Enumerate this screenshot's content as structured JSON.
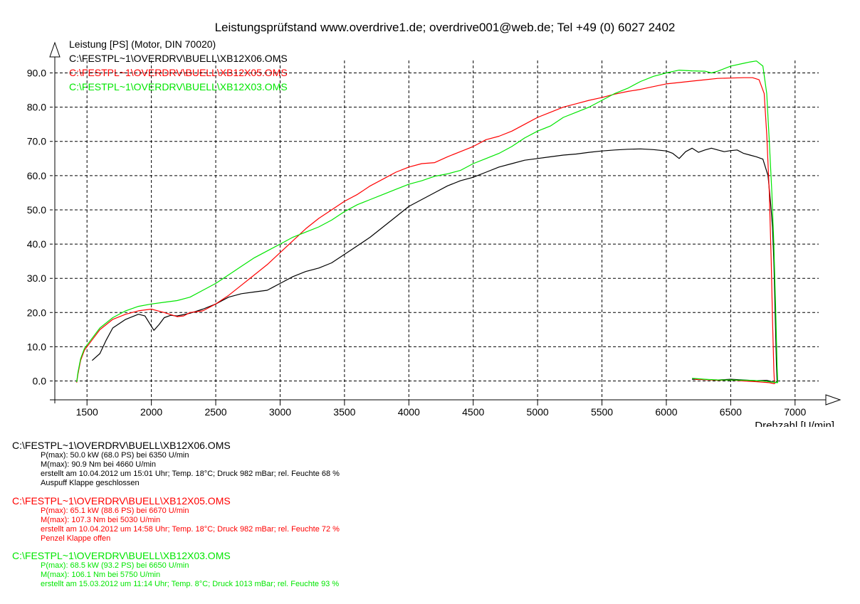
{
  "chart_data": {
    "type": "line",
    "title": "Leistungsprüfstand www.overdrive1.de; overdrive001@web.de; Tel +49 (0) 6027 2402",
    "ylabel": "Leistung [PS] (Motor, DIN 70020)",
    "xlabel": "Drehzahl [U/min]",
    "xlim": [
      1250,
      7250
    ],
    "ylim": [
      -5.5,
      98
    ],
    "grid": true,
    "x_ticks": [
      "1500",
      "2000",
      "2500",
      "3000",
      "3500",
      "4000",
      "4500",
      "5000",
      "5500",
      "6000",
      "6500",
      "7000"
    ],
    "y_ticks": [
      "0.0",
      "10.0",
      "20.0",
      "30.0",
      "40.0",
      "50.0",
      "60.0",
      "70.0",
      "80.0",
      "90.0"
    ],
    "legend_position": "top-left",
    "series": [
      {
        "name": "C:\\FESTPL~1\\OVERDRV\\BUELL\\XB12X06.OMS",
        "color": "#000000",
        "points": [
          [
            1540,
            6
          ],
          [
            1600,
            8
          ],
          [
            1650,
            12
          ],
          [
            1700,
            15.5
          ],
          [
            1800,
            18
          ],
          [
            1900,
            19.5
          ],
          [
            1950,
            19
          ],
          [
            2000,
            16
          ],
          [
            2020,
            14.8
          ],
          [
            2060,
            16.5
          ],
          [
            2100,
            18.5
          ],
          [
            2150,
            19.2
          ],
          [
            2200,
            19
          ],
          [
            2300,
            19.8
          ],
          [
            2400,
            21
          ],
          [
            2500,
            22.5
          ],
          [
            2600,
            24.5
          ],
          [
            2700,
            25.5
          ],
          [
            2800,
            26
          ],
          [
            2900,
            26.5
          ],
          [
            2950,
            27.5
          ],
          [
            3000,
            28.5
          ],
          [
            3100,
            30.5
          ],
          [
            3200,
            32
          ],
          [
            3300,
            33
          ],
          [
            3400,
            34.5
          ],
          [
            3500,
            37
          ],
          [
            3600,
            39.5
          ],
          [
            3700,
            42
          ],
          [
            3800,
            45
          ],
          [
            3900,
            48
          ],
          [
            4000,
            51
          ],
          [
            4100,
            53
          ],
          [
            4200,
            55
          ],
          [
            4300,
            57
          ],
          [
            4400,
            58.5
          ],
          [
            4500,
            59.5
          ],
          [
            4600,
            61
          ],
          [
            4700,
            62.5
          ],
          [
            4800,
            63.5
          ],
          [
            4900,
            64.5
          ],
          [
            5000,
            65
          ],
          [
            5100,
            65.5
          ],
          [
            5200,
            66
          ],
          [
            5300,
            66.3
          ],
          [
            5400,
            66.8
          ],
          [
            5500,
            67.2
          ],
          [
            5600,
            67.5
          ],
          [
            5700,
            67.7
          ],
          [
            5800,
            67.8
          ],
          [
            5900,
            67.6
          ],
          [
            6000,
            67.2
          ],
          [
            6050,
            66.5
          ],
          [
            6100,
            65
          ],
          [
            6150,
            67
          ],
          [
            6200,
            68
          ],
          [
            6250,
            66.8
          ],
          [
            6300,
            67.5
          ],
          [
            6350,
            68
          ],
          [
            6400,
            67.5
          ],
          [
            6450,
            67
          ],
          [
            6500,
            67.3
          ],
          [
            6550,
            67.5
          ],
          [
            6600,
            66.5
          ],
          [
            6650,
            66
          ],
          [
            6700,
            65.5
          ],
          [
            6750,
            64.8
          ],
          [
            6790,
            60
          ],
          [
            6810,
            52
          ],
          [
            6825,
            45
          ],
          [
            6835,
            35
          ],
          [
            6845,
            20
          ],
          [
            6855,
            5
          ],
          [
            6860,
            0
          ],
          [
            6850,
            -0.5
          ],
          [
            6820,
            -0.2
          ],
          [
            6780,
            0.2
          ],
          [
            6700,
            0.1
          ],
          [
            6600,
            0.3
          ],
          [
            6500,
            0.5
          ],
          [
            6400,
            0.3
          ],
          [
            6300,
            0.4
          ],
          [
            6200,
            0.5
          ]
        ]
      },
      {
        "name": "C:\\FESTPL~1\\OVERDRV\\BUELL\\XB12X05.OMS",
        "color": "#ff0000",
        "points": [
          [
            1420,
            -0.5
          ],
          [
            1430,
            2
          ],
          [
            1450,
            6
          ],
          [
            1480,
            9
          ],
          [
            1530,
            11.5
          ],
          [
            1600,
            15
          ],
          [
            1700,
            18
          ],
          [
            1800,
            19.5
          ],
          [
            1900,
            20.5
          ],
          [
            2000,
            21
          ],
          [
            2050,
            20.5
          ],
          [
            2100,
            20
          ],
          [
            2200,
            18.8
          ],
          [
            2250,
            19
          ],
          [
            2300,
            20
          ],
          [
            2400,
            20.5
          ],
          [
            2500,
            22.5
          ],
          [
            2600,
            25
          ],
          [
            2700,
            28
          ],
          [
            2800,
            31
          ],
          [
            2900,
            34
          ],
          [
            3000,
            37.5
          ],
          [
            3100,
            41
          ],
          [
            3200,
            44.5
          ],
          [
            3300,
            47.5
          ],
          [
            3400,
            50
          ],
          [
            3500,
            52.5
          ],
          [
            3600,
            54.5
          ],
          [
            3700,
            57
          ],
          [
            3800,
            59
          ],
          [
            3900,
            61
          ],
          [
            4000,
            62.5
          ],
          [
            4100,
            63.5
          ],
          [
            4200,
            63.8
          ],
          [
            4300,
            65.5
          ],
          [
            4400,
            67
          ],
          [
            4500,
            68.5
          ],
          [
            4600,
            70.5
          ],
          [
            4700,
            71.5
          ],
          [
            4800,
            73
          ],
          [
            4900,
            75
          ],
          [
            5000,
            77
          ],
          [
            5100,
            78.5
          ],
          [
            5200,
            80
          ],
          [
            5300,
            81
          ],
          [
            5400,
            82
          ],
          [
            5500,
            82.8
          ],
          [
            5600,
            83.8
          ],
          [
            5700,
            84.6
          ],
          [
            5800,
            85.2
          ],
          [
            5900,
            86
          ],
          [
            6000,
            86.8
          ],
          [
            6100,
            87.2
          ],
          [
            6200,
            87.6
          ],
          [
            6300,
            88
          ],
          [
            6400,
            88.4
          ],
          [
            6500,
            88.5
          ],
          [
            6600,
            88.6
          ],
          [
            6670,
            88.6
          ],
          [
            6720,
            88
          ],
          [
            6760,
            84
          ],
          [
            6780,
            72
          ],
          [
            6800,
            55
          ],
          [
            6815,
            35
          ],
          [
            6825,
            18
          ],
          [
            6835,
            3
          ],
          [
            6840,
            -0.8
          ],
          [
            6800,
            -0.5
          ],
          [
            6700,
            -0.2
          ],
          [
            6600,
            0
          ],
          [
            6500,
            0.3
          ],
          [
            6400,
            0.2
          ],
          [
            6300,
            0.4
          ],
          [
            6220,
            0.5
          ]
        ]
      },
      {
        "name": "C:\\FESTPL~1\\OVERDRV\\BUELL\\XB12X03.OMS",
        "color": "#00e600",
        "points": [
          [
            1420,
            -0.3
          ],
          [
            1430,
            2.5
          ],
          [
            1450,
            6.5
          ],
          [
            1480,
            9.5
          ],
          [
            1530,
            12
          ],
          [
            1600,
            15.5
          ],
          [
            1700,
            18.5
          ],
          [
            1800,
            20.5
          ],
          [
            1900,
            21.8
          ],
          [
            2000,
            22.5
          ],
          [
            2100,
            23
          ],
          [
            2200,
            23.5
          ],
          [
            2300,
            24.5
          ],
          [
            2400,
            26.5
          ],
          [
            2500,
            28.5
          ],
          [
            2600,
            31
          ],
          [
            2700,
            33.5
          ],
          [
            2800,
            36
          ],
          [
            2900,
            38
          ],
          [
            3000,
            40
          ],
          [
            3100,
            42
          ],
          [
            3200,
            43.5
          ],
          [
            3300,
            45
          ],
          [
            3400,
            47
          ],
          [
            3500,
            49.5
          ],
          [
            3600,
            51.5
          ],
          [
            3700,
            53
          ],
          [
            3800,
            54.5
          ],
          [
            3900,
            56
          ],
          [
            4000,
            57.5
          ],
          [
            4100,
            58.5
          ],
          [
            4200,
            59.8
          ],
          [
            4300,
            60.5
          ],
          [
            4400,
            61.5
          ],
          [
            4500,
            63.5
          ],
          [
            4600,
            65
          ],
          [
            4700,
            66.5
          ],
          [
            4800,
            68.5
          ],
          [
            4900,
            71
          ],
          [
            5000,
            73
          ],
          [
            5100,
            74.5
          ],
          [
            5200,
            77
          ],
          [
            5300,
            78.5
          ],
          [
            5400,
            80
          ],
          [
            5500,
            82
          ],
          [
            5600,
            84
          ],
          [
            5700,
            85.5
          ],
          [
            5800,
            87.5
          ],
          [
            5900,
            89
          ],
          [
            6000,
            90
          ],
          [
            6100,
            90.8
          ],
          [
            6200,
            90.6
          ],
          [
            6300,
            90.5
          ],
          [
            6350,
            90
          ],
          [
            6400,
            90.5
          ],
          [
            6500,
            92
          ],
          [
            6600,
            92.8
          ],
          [
            6650,
            93.2
          ],
          [
            6700,
            93.5
          ],
          [
            6750,
            92
          ],
          [
            6780,
            84
          ],
          [
            6800,
            70
          ],
          [
            6820,
            55
          ],
          [
            6835,
            40
          ],
          [
            6850,
            20
          ],
          [
            6860,
            5
          ],
          [
            6865,
            -0.5
          ],
          [
            6820,
            -0.3
          ],
          [
            6750,
            0
          ],
          [
            6650,
            0.2
          ],
          [
            6500,
            0.3
          ],
          [
            6400,
            0.3
          ],
          [
            6300,
            0.5
          ],
          [
            6200,
            0.8
          ]
        ]
      }
    ]
  },
  "details": [
    {
      "file": "C:\\FESTPL~1\\OVERDRV\\BUELL\\XB12X06.OMS",
      "color": "#000000",
      "lines": [
        "P(max): 50.0 kW (68.0 PS) bei 6350 U/min",
        "M(max): 90.9 Nm bei 4660 U/min",
        "erstellt am 10.04.2012 um 15:01 Uhr; Temp. 18°C; Druck 982 mBar; rel. Feuchte 68 %",
        "Auspuff Klappe geschlossen"
      ]
    },
    {
      "file": "C:\\FESTPL~1\\OVERDRV\\BUELL\\XB12X05.OMS",
      "color": "#ff0000",
      "lines": [
        "P(max): 65.1 kW (88.6 PS) bei 6670 U/min",
        "M(max): 107.3 Nm bei 5030 U/min",
        "erstellt am 10.04.2012 um 14:58 Uhr; Temp. 18°C; Druck 982 mBar; rel. Feuchte 72 %",
        "Penzel Klappe offen"
      ]
    },
    {
      "file": "C:\\FESTPL~1\\OVERDRV\\BUELL\\XB12X03.OMS",
      "color": "#00e600",
      "lines": [
        "P(max): 68.5 kW (93.2 PS) bei 6650 U/min",
        "M(max): 106.1 Nm bei 5750 U/min",
        "erstellt am 15.03.2012 um 11:14 Uhr; Temp. 8°C; Druck 1013 mBar; rel. Feuchte 93 %"
      ]
    }
  ]
}
